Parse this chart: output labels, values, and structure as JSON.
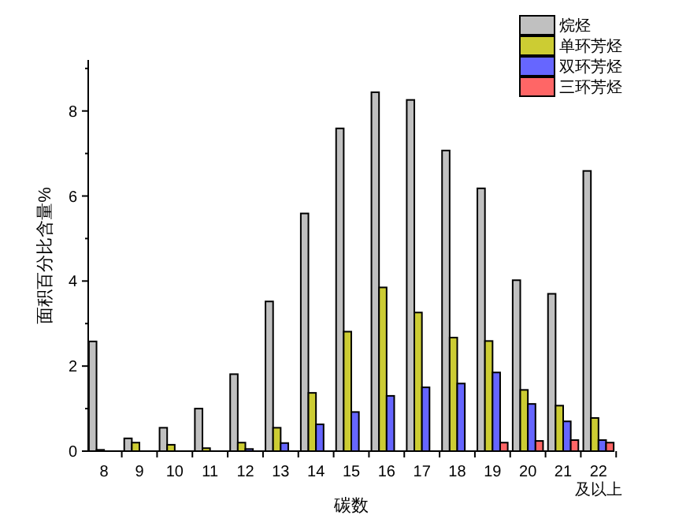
{
  "chart_data": {
    "type": "bar",
    "xlabel": "碳数",
    "ylabel": "面积百分比含量%",
    "categories": [
      "8",
      "9",
      "10",
      "11",
      "12",
      "13",
      "14",
      "15",
      "16",
      "17",
      "18",
      "19",
      "20",
      "21",
      "22及以上"
    ],
    "series": [
      {
        "name": "烷烃",
        "color": "#c0c0c0",
        "values": [
          2.58,
          0.3,
          0.55,
          1.0,
          1.81,
          3.52,
          5.59,
          7.59,
          8.44,
          8.26,
          7.07,
          6.18,
          4.02,
          3.7,
          6.59
        ]
      },
      {
        "name": "单环芳烃",
        "color": "#cccc33",
        "values": [
          0.03,
          0.2,
          0.15,
          0.07,
          0.2,
          0.55,
          1.37,
          2.81,
          3.85,
          3.26,
          2.67,
          2.59,
          1.44,
          1.07,
          0.78
        ]
      },
      {
        "name": "双环芳烃",
        "color": "#6666ff",
        "values": [
          0,
          0,
          0,
          0,
          0.05,
          0.19,
          0.63,
          0.92,
          1.3,
          1.5,
          1.59,
          1.85,
          1.11,
          0.7,
          0.26
        ]
      },
      {
        "name": "三环芳烃",
        "color": "#ff6666",
        "values": [
          0,
          0,
          0,
          0,
          0,
          0,
          0,
          0,
          0,
          0,
          0,
          0.2,
          0.24,
          0.26,
          0.2
        ]
      }
    ],
    "ylim": [
      0,
      9.2
    ],
    "yticks": [
      0,
      2,
      4,
      6,
      8
    ],
    "grid": false,
    "legend": "top right"
  }
}
